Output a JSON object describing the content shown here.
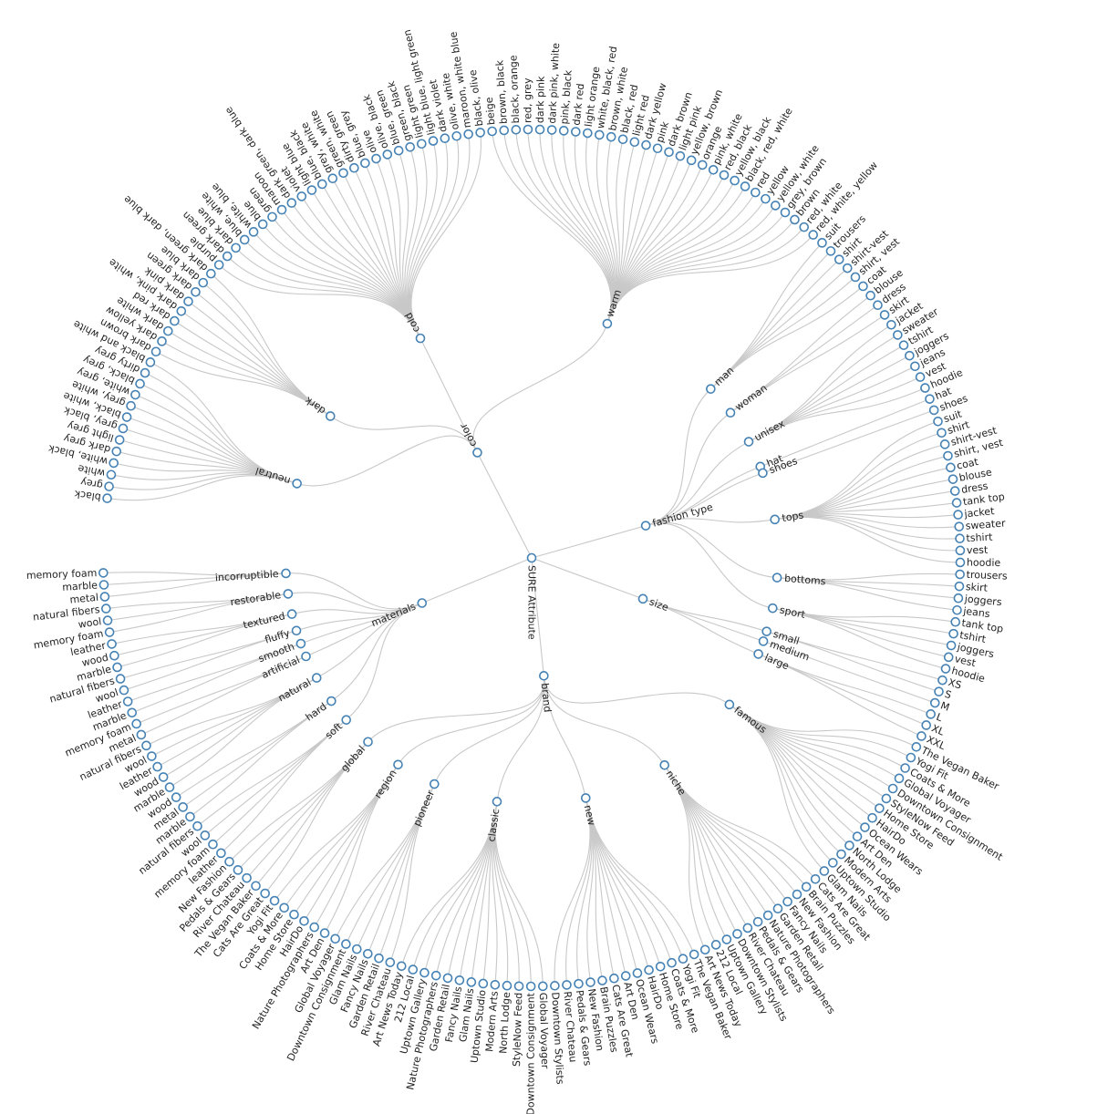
{
  "colors": {
    "link": "#c8c8c8",
    "node_stroke": "#4682b4",
    "node_fill": "#ffffff",
    "text": "#222222"
  },
  "tree": {
    "name": "SURE Attribute",
    "children": [
      {
        "name": "color",
        "children": [
          {
            "name": "neutral",
            "children": [
              "black",
              "grey",
              "white",
              "white, black",
              "dark grey",
              "light grey",
              "grey, black",
              "black, white",
              "grey, white",
              "white, grey",
              "black, grey",
              "dirty grey",
              "black and white"
            ]
          },
          {
            "name": "dark",
            "children": [
              "dark brown",
              "dark yellow",
              "dark white",
              "dark red",
              "dark pink, white",
              "dark pink",
              "dark green",
              "dark blue",
              "dark green, dark blue"
            ]
          },
          {
            "name": "cold",
            "children": [
              "purple",
              "dark green",
              "dark blue",
              "blue, white",
              "white, blue",
              "blue",
              "green",
              "maroon",
              "dark green, dark blue",
              "violet",
              "light blue",
              "blue, black",
              "grey, white",
              "green, white",
              "dirty green",
              "blue, grey",
              "olive",
              "olive, black",
              "blue, green",
              "green, black",
              "light green",
              "light blue, light green",
              "dark violet",
              "olive, white",
              "maroon, white blue",
              "black, olive"
            ]
          },
          {
            "name": "warm",
            "children": [
              "beige",
              "brown, black",
              "black, orange",
              "red, grey",
              "dark pink",
              "dark pink, white",
              "pink, black",
              "dark red",
              "light orange",
              "white, black, red",
              "brown, white",
              "black, red",
              "light red",
              "dark yellow",
              "pink",
              "dark brown",
              "light pink",
              "yellow, brown",
              "orange",
              "pink, white",
              "red, black",
              "yellow, black",
              "black, red, white",
              "red",
              "yellow",
              "yellow, white",
              "grey, brown",
              "brown",
              "red, white",
              "red, white, yellow"
            ]
          }
        ]
      },
      {
        "name": "fashion type",
        "children": [
          {
            "name": "man",
            "children": [
              "suit",
              "trousers",
              "shirt",
              "shirt-vest",
              "shirt, vest",
              "coat"
            ]
          },
          {
            "name": "woman",
            "children": [
              "blouse",
              "dress",
              "skirt"
            ]
          },
          {
            "name": "unisex",
            "children": [
              "jacket",
              "sweater",
              "tshirt",
              "joggers",
              "jeans",
              "vest",
              "hoodie"
            ]
          },
          {
            "name": "hat",
            "children": [
              "hat"
            ]
          },
          {
            "name": "shoes",
            "children": [
              "shoes"
            ]
          },
          {
            "name": "tops",
            "children": [
              "suit",
              "shirt",
              "shirt-vest",
              "shirt, vest",
              "coat",
              "blouse",
              "dress",
              "tank top",
              "jacket",
              "sweater",
              "tshirt",
              "vest",
              "hoodie"
            ]
          },
          {
            "name": "bottoms",
            "children": [
              "trousers",
              "skirt",
              "joggers",
              "jeans"
            ]
          },
          {
            "name": "sport",
            "children": [
              "tank top",
              "tshirt",
              "joggers",
              "vest",
              "hoodie"
            ]
          }
        ]
      },
      {
        "name": "size",
        "children": [
          {
            "name": "small",
            "children": [
              "XS",
              "S"
            ]
          },
          {
            "name": "medium",
            "children": [
              "M"
            ]
          },
          {
            "name": "large",
            "children": [
              "L",
              "XL",
              "XXL"
            ]
          }
        ]
      },
      {
        "name": "brand",
        "children": [
          {
            "name": "famous",
            "children": [
              "The Vegan Baker",
              "Yogi Fit",
              "Coats & More",
              "Global Voyager",
              "Downtown Consignment",
              "StyleNow Feed",
              "Home Store",
              "HairDo",
              "Ocean Wears",
              "Art Den",
              "North Lodge",
              "Modern Arts",
              "Uptown Studio",
              "Glam Nails"
            ]
          },
          {
            "name": "niche",
            "children": [
              "Cats Are Great",
              "Brain Puzzles",
              "New Fashion",
              "Fancy Nails",
              "Garden Retail",
              "Nature Photographers",
              "Pedals & Gears",
              "River Chateau",
              "Downtown Stylists",
              "Uptown Gallery",
              "212 Local",
              "Art News Today"
            ]
          },
          {
            "name": "new",
            "children": [
              "The Vegan Baker",
              "Yogi Fit",
              "Coats & More",
              "Home Store",
              "HairDo",
              "Ocean Wears",
              "Art Den",
              "Cats Are Great",
              "Brain Puzzles",
              "New Fashion",
              "Pedals & Gears",
              "River Chateau",
              "Downtown Stylists"
            ]
          },
          {
            "name": "classic",
            "children": [
              "Global Voyager",
              "Downtown Consignment",
              "StyleNow Feed",
              "North Lodge",
              "Modern Arts",
              "Uptown Studio",
              "Glam Nails",
              "Fancy Nails",
              "Garden Retail",
              "Nature Photographers",
              "Uptown Gallery",
              "212 Local",
              "Art News Today"
            ]
          },
          {
            "name": "pioneer",
            "children": [
              "River Chateau",
              "Garden Retail",
              "Fancy Nails",
              "Glam Nails",
              "Downtown Consignment",
              "Global Voyager"
            ]
          },
          {
            "name": "region",
            "children": [
              "Art Den",
              "Nature Photographers",
              "HairDo",
              "Home Store",
              "Coats & More",
              "Yogi Fit"
            ]
          },
          {
            "name": "global",
            "children": [
              "Cats Are Great",
              "The Vegan Baker",
              "River Chateau",
              "Pedals & Gears",
              "New Fashion"
            ]
          }
        ]
      },
      {
        "name": "materials",
        "children": [
          {
            "name": "soft",
            "children": [
              "leather",
              "memory foam",
              "wool",
              "natural fibers"
            ]
          },
          {
            "name": "hard",
            "children": [
              "marble",
              "metal",
              "wood"
            ]
          },
          {
            "name": "natural",
            "children": [
              "marble",
              "wood",
              "leather",
              "wool",
              "natural fibers"
            ]
          },
          {
            "name": "artificial",
            "children": [
              "metal",
              "memory foam"
            ]
          },
          {
            "name": "smooth",
            "children": [
              "marble",
              "leather"
            ]
          },
          {
            "name": "fluffy",
            "children": [
              "wool",
              "natural fibers"
            ]
          },
          {
            "name": "textured",
            "children": [
              "marble",
              "wood",
              "leather"
            ]
          },
          {
            "name": "restorable",
            "children": [
              "memory foam",
              "wool",
              "natural fibers"
            ]
          },
          {
            "name": "incorruptible",
            "children": [
              "metal",
              "marble",
              "memory foam"
            ]
          }
        ]
      }
    ]
  }
}
